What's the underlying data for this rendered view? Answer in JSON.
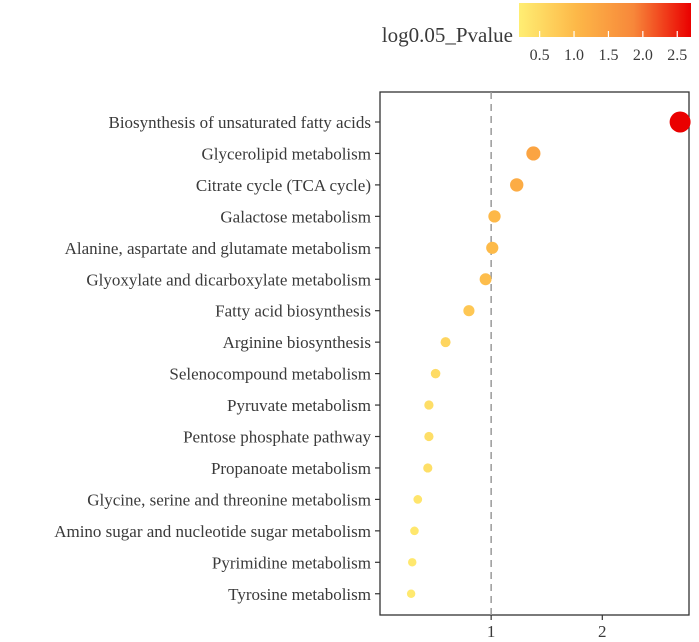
{
  "chart_data": {
    "type": "scatter",
    "title": "",
    "xlabel": "",
    "ylabel": "",
    "xlim": [
      0.0,
      2.78
    ],
    "xticks": [
      1,
      2
    ],
    "reference_line_x": 1,
    "grid": false,
    "legend": {
      "title": "log0.05_Pvalue",
      "placement": "top-right",
      "range": [
        0.2,
        2.7
      ],
      "ticks": [
        "0.5",
        "1.0",
        "1.5",
        "2.0",
        "2.5"
      ],
      "colors": [
        "#ffee73",
        "#fdb848",
        "#f7873a",
        "#ea0000"
      ]
    },
    "categories": [
      "Biosynthesis of unsaturated fatty acids",
      "Glycerolipid metabolism",
      "Citrate cycle (TCA cycle)",
      "Galactose metabolism",
      "Alanine, aspartate and glutamate metabolism",
      "Glyoxylate and dicarboxylate metabolism",
      "Fatty acid biosynthesis",
      "Arginine biosynthesis",
      "Selenocompound metabolism",
      "Pyruvate metabolism",
      "Pentose phosphate pathway",
      "Propanoate metabolism",
      "Glycine, serine and threonine metabolism",
      "Amino sugar and nucleotide sugar metabolism",
      "Pyrimidine metabolism",
      "Tyrosine metabolism"
    ],
    "values": [
      2.7,
      1.38,
      1.23,
      1.03,
      1.01,
      0.95,
      0.8,
      0.59,
      0.5,
      0.44,
      0.44,
      0.43,
      0.34,
      0.31,
      0.29,
      0.28
    ],
    "color_values": [
      2.7,
      1.38,
      1.23,
      1.03,
      1.01,
      0.95,
      0.8,
      0.59,
      0.5,
      0.44,
      0.44,
      0.43,
      0.34,
      0.31,
      0.29,
      0.28
    ]
  }
}
